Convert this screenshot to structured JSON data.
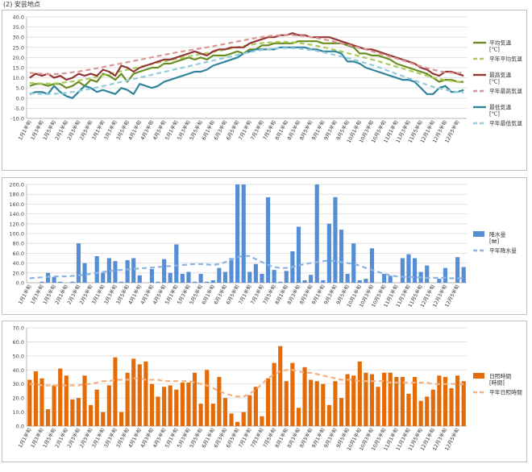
{
  "page": {
    "title": "(2) 安芸地点"
  },
  "dekads": [
    "1月1半旬",
    "1月2半旬",
    "1月3半旬",
    "1月4半旬",
    "1月5半旬",
    "1月6半旬",
    "2月1半旬",
    "2月2半旬",
    "2月3半旬",
    "2月4半旬",
    "2月5半旬",
    "2月6半旬",
    "3月1半旬",
    "3月2半旬",
    "3月3半旬",
    "3月4半旬",
    "3月5半旬",
    "3月6半旬",
    "4月1半旬",
    "4月2半旬",
    "4月3半旬",
    "4月4半旬",
    "4月5半旬",
    "4月6半旬",
    "5月1半旬",
    "5月2半旬",
    "5月3半旬",
    "5月4半旬",
    "5月5半旬",
    "5月6半旬",
    "6月1半旬",
    "6月2半旬",
    "6月3半旬",
    "6月4半旬",
    "6月5半旬",
    "6月6半旬",
    "7月1半旬",
    "7月2半旬",
    "7月3半旬",
    "7月4半旬",
    "7月5半旬",
    "7月6半旬",
    "8月1半旬",
    "8月2半旬",
    "8月3半旬",
    "8月4半旬",
    "8月5半旬",
    "8月6半旬",
    "9月1半旬",
    "9月2半旬",
    "9月3半旬",
    "9月4半旬",
    "9月5半旬",
    "9月6半旬",
    "10月1半旬",
    "10月2半旬",
    "10月3半旬",
    "10月4半旬",
    "10月5半旬",
    "10月6半旬",
    "11月1半旬",
    "11月2半旬",
    "11月3半旬",
    "11月4半旬",
    "11月5半旬",
    "11月6半旬",
    "12月1半旬",
    "12月2半旬",
    "12月3半旬",
    "12月4半旬",
    "12月5半旬",
    "12月6半旬"
  ],
  "chart_data": [
    {
      "type": "line",
      "ylim": [
        -10,
        40
      ],
      "yticks": [
        -10,
        -5,
        0,
        5,
        10,
        15,
        20,
        25,
        30,
        35,
        40
      ],
      "ytick_labels": [
        "-10.0",
        "-5.0",
        "0.0",
        "5.0",
        "10.0",
        "15.0",
        "20.0",
        "25.0",
        "30.0",
        "35.0",
        "40.0"
      ],
      "x_tick_labels": [
        "1月1半旬",
        "1月3半旬",
        "1月5半旬",
        "2月1半旬",
        "2月3半旬",
        "2月5半旬",
        "3月1半旬",
        "3月3半旬",
        "3月5半旬",
        "4月1半旬",
        "4月3半旬",
        "4月5半旬",
        "5月1半旬",
        "5月3半旬",
        "5月5半旬",
        "6月1半旬",
        "6月3半旬",
        "6月5半旬",
        "7月1半旬",
        "7月3半旬",
        "7月5半旬",
        "8月1半旬",
        "8月3半旬",
        "8月5半旬",
        "9月1半旬",
        "9月3半旬",
        "9月5半旬",
        "10月1半旬",
        "10月3半旬",
        "10月5半旬",
        "11月1半旬",
        "11月3半旬",
        "11月5半旬",
        "12月1半旬",
        "12月3半旬",
        "12月5半旬"
      ],
      "grid": true,
      "legend_position": "right",
      "series": [
        {
          "name": "平均気温 [℃]",
          "color": "#6b8e23",
          "style": "solid",
          "values": [
            6,
            7,
            7,
            6,
            7,
            7,
            5,
            6,
            8,
            6,
            9,
            8,
            12,
            11,
            9,
            12,
            8,
            12,
            13,
            14,
            15,
            15,
            17,
            17,
            18,
            19,
            20,
            19,
            20,
            19,
            21,
            21,
            21,
            22,
            23,
            22,
            24,
            24,
            26,
            26,
            27,
            27,
            27,
            27,
            28,
            28,
            28,
            28,
            27,
            27,
            27,
            27,
            26,
            25,
            22,
            22,
            21,
            21,
            20,
            19,
            17,
            16,
            15,
            14,
            13,
            12,
            10,
            8,
            9,
            9,
            8,
            8
          ]
        },
        {
          "name": "平年平均気温",
          "color": "#a9cc58",
          "style": "dashed",
          "values": [
            7.5,
            7.3,
            7.2,
            7.1,
            7.2,
            7.5,
            7.8,
            8.2,
            8.7,
            9.2,
            9.8,
            10.5,
            11.2,
            11.9,
            12.6,
            13.3,
            14.0,
            14.7,
            15.4,
            16.1,
            16.8,
            17.5,
            18.1,
            18.7,
            19.3,
            19.9,
            20.5,
            21.1,
            21.7,
            22.2,
            22.7,
            23.3,
            23.9,
            24.5,
            25.1,
            25.7,
            26.2,
            26.7,
            27.1,
            27.4,
            27.6,
            27.7,
            27.7,
            27.5,
            27.2,
            26.8,
            26.3,
            25.7,
            25.1,
            24.4,
            23.7,
            23.0,
            22.2,
            21.4,
            20.6,
            19.8,
            19.0,
            18.2,
            17.3,
            16.4,
            15.5,
            14.6,
            13.7,
            12.8,
            11.9,
            11.0,
            10.2,
            9.5,
            8.9,
            8.4,
            8.0,
            7.7
          ]
        },
        {
          "name": "最高気温 [℃]",
          "color": "#943634",
          "style": "solid",
          "values": [
            10,
            12,
            11,
            12,
            10,
            11,
            9,
            10,
            12,
            11,
            12,
            11,
            14,
            13,
            11,
            16,
            15,
            13,
            15,
            16,
            17,
            18,
            19,
            19,
            20,
            21,
            22,
            23,
            22,
            21,
            23,
            24,
            24,
            25,
            25,
            25,
            27,
            28,
            29,
            30,
            30,
            31,
            31,
            32,
            31,
            31,
            30,
            30,
            30,
            30,
            29,
            28,
            27,
            26,
            25,
            24,
            24,
            23,
            22,
            21,
            20,
            19,
            18,
            17,
            15,
            14,
            12,
            11,
            13,
            13,
            12,
            11
          ]
        },
        {
          "name": "平年最高気温",
          "color": "#d99694",
          "style": "dashed",
          "values": [
            12.5,
            12.2,
            12.0,
            11.8,
            11.8,
            12.0,
            12.3,
            12.7,
            13.1,
            13.6,
            14.1,
            14.7,
            15.3,
            15.9,
            16.5,
            17.1,
            17.7,
            18.3,
            18.9,
            19.5,
            20.1,
            20.7,
            21.3,
            21.9,
            22.5,
            23.0,
            23.5,
            24.0,
            24.5,
            25.0,
            25.5,
            26.1,
            26.7,
            27.3,
            27.9,
            28.5,
            29.1,
            29.6,
            30.1,
            30.5,
            30.8,
            31.0,
            31.1,
            31.0,
            30.8,
            30.5,
            30.1,
            29.6,
            29.0,
            28.4,
            27.7,
            27.0,
            26.3,
            25.5,
            24.7,
            23.9,
            23.1,
            22.2,
            21.3,
            20.4,
            19.5,
            18.6,
            17.6,
            16.6,
            15.7,
            14.8,
            14.0,
            13.3,
            12.8,
            12.5,
            12.4,
            12.4
          ]
        },
        {
          "name": "最低気温 [℃]",
          "color": "#31849b",
          "style": "solid",
          "values": [
            2,
            3,
            3,
            2,
            6,
            3,
            1,
            0,
            3,
            6,
            5,
            3,
            4,
            3,
            2,
            5,
            4,
            2,
            7,
            6,
            5,
            6,
            8,
            9,
            10,
            11,
            12,
            13,
            13,
            14,
            16,
            17,
            18,
            19,
            20,
            22,
            23,
            24,
            24,
            24,
            24,
            25,
            25,
            25,
            25,
            25,
            24,
            24,
            23,
            23,
            23,
            22,
            18,
            18,
            17,
            15,
            14,
            13,
            12,
            11,
            10,
            9,
            9,
            8,
            5,
            2,
            2,
            5,
            6,
            3,
            3,
            4
          ]
        },
        {
          "name": "平年最低気温",
          "color": "#92cddc",
          "style": "dashed",
          "values": [
            2.4,
            2.2,
            2.1,
            2.0,
            2.1,
            2.3,
            2.6,
            3.0,
            3.5,
            4.0,
            4.6,
            5.2,
            5.9,
            6.6,
            7.3,
            8.0,
            8.7,
            9.4,
            10.1,
            10.8,
            11.5,
            12.2,
            12.9,
            13.6,
            14.3,
            15.0,
            15.7,
            16.4,
            17.1,
            17.8,
            18.5,
            19.2,
            19.9,
            20.6,
            21.3,
            22.0,
            22.6,
            23.2,
            23.7,
            24.1,
            24.4,
            24.6,
            24.7,
            24.6,
            24.4,
            24.1,
            23.7,
            23.2,
            22.6,
            21.9,
            21.2,
            20.5,
            19.8,
            19.0,
            18.1,
            17.2,
            16.3,
            15.3,
            14.2,
            13.1,
            12.0,
            10.9,
            9.8,
            8.7,
            7.6,
            6.6,
            5.6,
            4.8,
            4.1,
            3.5,
            3.0,
            2.6
          ]
        }
      ]
    },
    {
      "type": "bar",
      "ylim": [
        0,
        200
      ],
      "yticks": [
        0,
        20,
        40,
        60,
        80,
        100,
        120,
        140,
        160,
        180,
        200
      ],
      "ytick_labels": [
        "0.0",
        "20.0",
        "40.0",
        "60.0",
        "80.0",
        "100.0",
        "120.0",
        "140.0",
        "160.0",
        "180.0",
        "200.0"
      ],
      "x_tick_labels": [
        "1月1半旬",
        "1月3半旬",
        "1月5半旬",
        "2月1半旬",
        "2月3半旬",
        "2月5半旬",
        "3月1半旬",
        "3月3半旬",
        "3月5半旬",
        "4月1半旬",
        "4月3半旬",
        "4月5半旬",
        "5月1半旬",
        "5月3半旬",
        "5月5半旬",
        "6月1半旬",
        "6月3半旬",
        "6月5半旬",
        "7月1半旬",
        "7月3半旬",
        "7月5半旬",
        "8月1半旬",
        "8月3半旬",
        "8月5半旬",
        "9月1半旬",
        "9月3半旬",
        "9月5半旬",
        "10月1半旬",
        "10月3半旬",
        "10月5半旬",
        "11月1半旬",
        "11月3半旬",
        "11月5半旬",
        "12月1半旬",
        "12月3半旬",
        "12月5半旬"
      ],
      "grid": true,
      "legend_position": "right",
      "series": [
        {
          "name": "降水量 [㎜]",
          "color": "#558ed5",
          "kind": "bar",
          "values": [
            0,
            0,
            2,
            20,
            12,
            2,
            0,
            2,
            80,
            40,
            0,
            54,
            20,
            50,
            44,
            2,
            46,
            50,
            15,
            0,
            28,
            2,
            48,
            20,
            78,
            18,
            22,
            2,
            18,
            2,
            5,
            30,
            22,
            50,
            200,
            200,
            22,
            38,
            18,
            174,
            26,
            2,
            24,
            64,
            114,
            5,
            16,
            200,
            5,
            120,
            174,
            108,
            18,
            80,
            5,
            8,
            70,
            0,
            18,
            14,
            0,
            50,
            58,
            50,
            22,
            35,
            0,
            8,
            30,
            0,
            52,
            32
          ]
        },
        {
          "name": "平年降水量",
          "color": "#8eb4e3",
          "kind": "dashed-line",
          "values": [
            9,
            10,
            11,
            12,
            13,
            13,
            13,
            14,
            15,
            16,
            18,
            20,
            22,
            24,
            25,
            26,
            27,
            28,
            29,
            30,
            31,
            32,
            33,
            34,
            35,
            36,
            37,
            38,
            38,
            37,
            36,
            38,
            42,
            47,
            52,
            55,
            54,
            48,
            42,
            36,
            32,
            30,
            30,
            32,
            35,
            38,
            40,
            42,
            44,
            45,
            44,
            42,
            40,
            38,
            35,
            30,
            26,
            22,
            18,
            15,
            13,
            12,
            12,
            11,
            11,
            10,
            10,
            10,
            10,
            9,
            9,
            9
          ]
        }
      ]
    },
    {
      "type": "bar",
      "ylim": [
        0,
        70
      ],
      "yticks": [
        0,
        10,
        20,
        30,
        40,
        50,
        60,
        70
      ],
      "ytick_labels": [
        "0.0",
        "10.0",
        "20.0",
        "30.0",
        "40.0",
        "50.0",
        "60.0",
        "70.0"
      ],
      "x_tick_labels": [
        "1月1半旬",
        "1月3半旬",
        "1月5半旬",
        "2月1半旬",
        "2月3半旬",
        "2月5半旬",
        "3月1半旬",
        "3月3半旬",
        "3月5半旬",
        "4月1半旬",
        "4月3半旬",
        "4月5半旬",
        "5月1半旬",
        "5月3半旬",
        "5月5半旬",
        "6月1半旬",
        "6月3半旬",
        "6月5半旬",
        "7月1半旬",
        "7月3半旬",
        "7月5半旬",
        "8月1半旬",
        "8月3半旬",
        "8月5半旬",
        "9月1半旬",
        "9月3半旬",
        "9月5半旬",
        "10月1半旬",
        "10月3半旬",
        "10月5半旬",
        "11月1半旬",
        "11月3半旬",
        "11月5半旬",
        "12月1半旬",
        "12月3半旬",
        "12月5半旬"
      ],
      "grid": true,
      "legend_position": "right",
      "series": [
        {
          "name": "日照時間 [時間]",
          "color": "#e36c09",
          "kind": "bar",
          "values": [
            33,
            39,
            34,
            12,
            29,
            41,
            36,
            19,
            20,
            36,
            15,
            26,
            10,
            29,
            49,
            10,
            38,
            48,
            44,
            46,
            30,
            21,
            28,
            29,
            26,
            31,
            31,
            38,
            16,
            40,
            16,
            35,
            20,
            9,
            3,
            10,
            22,
            28,
            7,
            34,
            45,
            57,
            32,
            45,
            13,
            42,
            33,
            32,
            30,
            15,
            32,
            20,
            37,
            36,
            46,
            38,
            37,
            28,
            38,
            38,
            35,
            35,
            23,
            35,
            18,
            21,
            26,
            36,
            35,
            27,
            36,
            32
          ]
        },
        {
          "name": "平年日照時間",
          "color": "#f4b183",
          "kind": "dashed-line",
          "values": [
            30,
            30,
            29,
            29,
            29,
            29,
            29,
            29,
            29,
            30,
            30,
            31,
            32,
            32,
            33,
            33,
            33,
            34,
            34,
            33,
            33,
            33,
            32,
            32,
            32,
            32,
            32,
            31,
            30,
            29,
            27,
            25,
            23,
            22,
            21,
            21,
            23,
            26,
            30,
            34,
            37,
            39,
            40,
            40,
            39,
            38,
            38,
            37,
            36,
            35,
            34,
            33,
            33,
            33,
            32,
            32,
            32,
            32,
            32,
            31,
            31,
            31,
            31,
            31,
            31,
            31,
            30,
            30,
            30,
            30,
            30,
            30
          ]
        }
      ]
    }
  ]
}
